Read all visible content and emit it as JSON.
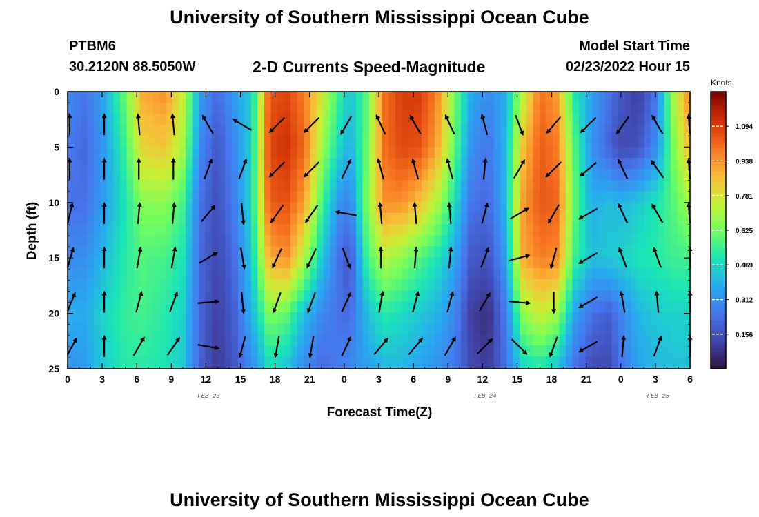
{
  "header": {
    "title": "University of Southern Mississippi Ocean Cube",
    "station": "PTBM6",
    "coords": "30.2120N  88.5050W",
    "subtitle": "2-D Currents Speed-Magnitude",
    "model_start_label": "Model Start Time",
    "model_start_value": "02/23/2022 Hour 15"
  },
  "footer": {
    "title": "University of Southern Mississippi Ocean Cube"
  },
  "colors": {
    "low": "#30123b",
    "high": "#7a0403",
    "vector": "#000000"
  },
  "chart_data": {
    "type": "heatmap",
    "xlabel": "Forecast Time(Z)",
    "ylabel": "Depth (ft)",
    "x_tick_labels": [
      "0",
      "3",
      "6",
      "9",
      "12",
      "15",
      "18",
      "21",
      "0",
      "3",
      "6",
      "9",
      "12",
      "15",
      "18",
      "21",
      "0",
      "3",
      "6"
    ],
    "date_labels": [
      {
        "text": "FEB 23",
        "at_tick": 4
      },
      {
        "text": "FEB 24",
        "at_tick": 12
      },
      {
        "text": "FEB 25",
        "at_tick": 17
      }
    ],
    "ylim": [
      0,
      25
    ],
    "y_ticks": [
      0,
      5,
      10,
      15,
      20,
      25
    ],
    "time_range_hours": [
      0,
      54
    ],
    "colorbar": {
      "title": "Knots",
      "range": [
        0,
        1.25
      ],
      "ticks": [
        0.156,
        0.312,
        0.469,
        0.625,
        0.781,
        0.938,
        1.094
      ]
    },
    "speed_profile": {
      "hours": [
        0,
        1.5,
        3,
        5,
        6.5,
        8.5,
        10,
        11.5,
        13,
        14.5,
        16,
        17.5,
        19,
        20.5,
        22,
        23.5,
        24.5,
        26,
        27.5,
        29,
        30.5,
        32,
        33.5,
        35,
        36.5,
        38,
        39.5,
        41,
        42.5,
        44,
        45.5,
        47,
        48,
        49.5,
        51,
        52.5,
        54
      ],
      "depths": [
        0,
        5,
        10,
        15,
        20,
        25
      ],
      "speed": [
        [
          0.3,
          0.26,
          0.24,
          0.3,
          0.38,
          0.32
        ],
        [
          0.25,
          0.22,
          0.24,
          0.31,
          0.38,
          0.34
        ],
        [
          0.35,
          0.32,
          0.34,
          0.4,
          0.46,
          0.44
        ],
        [
          0.62,
          0.55,
          0.5,
          0.52,
          0.54,
          0.52
        ],
        [
          0.9,
          0.82,
          0.65,
          0.58,
          0.56,
          0.52
        ],
        [
          0.95,
          0.85,
          0.66,
          0.56,
          0.52,
          0.5
        ],
        [
          0.75,
          0.7,
          0.56,
          0.5,
          0.46,
          0.44
        ],
        [
          0.35,
          0.3,
          0.24,
          0.22,
          0.21,
          0.2
        ],
        [
          0.22,
          0.17,
          0.15,
          0.13,
          0.11,
          0.09
        ],
        [
          0.35,
          0.3,
          0.28,
          0.24,
          0.2,
          0.18
        ],
        [
          0.45,
          0.46,
          0.48,
          0.45,
          0.4,
          0.3
        ],
        [
          1.05,
          1.08,
          1.04,
          0.9,
          0.65,
          0.48
        ],
        [
          1.08,
          1.12,
          1.06,
          0.95,
          0.6,
          0.42
        ],
        [
          0.98,
          1.02,
          0.92,
          0.72,
          0.42,
          0.3
        ],
        [
          0.78,
          0.7,
          0.58,
          0.45,
          0.3,
          0.22
        ],
        [
          0.55,
          0.48,
          0.33,
          0.24,
          0.24,
          0.27
        ],
        [
          0.42,
          0.38,
          0.28,
          0.16,
          0.22,
          0.3
        ],
        [
          0.6,
          0.62,
          0.65,
          0.56,
          0.42,
          0.35
        ],
        [
          1.0,
          1.0,
          0.95,
          0.72,
          0.52,
          0.4
        ],
        [
          1.1,
          1.08,
          0.95,
          0.66,
          0.48,
          0.4
        ],
        [
          1.1,
          1.06,
          0.86,
          0.58,
          0.44,
          0.36
        ],
        [
          0.98,
          0.92,
          0.72,
          0.5,
          0.4,
          0.32
        ],
        [
          0.65,
          0.62,
          0.5,
          0.38,
          0.3,
          0.26
        ],
        [
          0.38,
          0.32,
          0.25,
          0.18,
          0.11,
          0.14
        ],
        [
          0.3,
          0.25,
          0.22,
          0.16,
          0.07,
          0.1
        ],
        [
          0.38,
          0.4,
          0.4,
          0.35,
          0.26,
          0.24
        ],
        [
          0.72,
          0.85,
          0.92,
          0.9,
          0.66,
          0.46
        ],
        [
          1.0,
          1.04,
          1.05,
          0.98,
          0.76,
          0.5
        ],
        [
          0.92,
          0.98,
          1.02,
          0.96,
          0.68,
          0.42
        ],
        [
          0.5,
          0.58,
          0.6,
          0.55,
          0.36,
          0.24
        ],
        [
          0.36,
          0.32,
          0.38,
          0.42,
          0.24,
          0.14
        ],
        [
          0.24,
          0.2,
          0.42,
          0.44,
          0.2,
          0.14
        ],
        [
          0.18,
          0.14,
          0.4,
          0.46,
          0.28,
          0.24
        ],
        [
          0.1,
          0.16,
          0.44,
          0.5,
          0.4,
          0.36
        ],
        [
          0.25,
          0.3,
          0.5,
          0.52,
          0.44,
          0.4
        ],
        [
          0.68,
          0.62,
          0.58,
          0.55,
          0.46,
          0.42
        ],
        [
          0.98,
          0.88,
          0.7,
          0.56,
          0.46,
          0.42
        ]
      ]
    },
    "vectors": {
      "hours": [
        0,
        3,
        6,
        9,
        12,
        15,
        18,
        21,
        24,
        27,
        30,
        33,
        36,
        39,
        42,
        45,
        48,
        51,
        54
      ],
      "depths": [
        3,
        7,
        11,
        15,
        19,
        23
      ],
      "direction_deg": [
        [
          0,
          0,
          15,
          20,
          30,
          40
        ],
        [
          0,
          0,
          0,
          0,
          0,
          0
        ],
        [
          355,
          0,
          5,
          10,
          15,
          30
        ],
        [
          355,
          0,
          5,
          10,
          20,
          35
        ],
        [
          330,
          20,
          40,
          60,
          85,
          100
        ],
        [
          300,
          20,
          175,
          170,
          175,
          195
        ],
        [
          225,
          225,
          215,
          205,
          200,
          190
        ],
        [
          225,
          225,
          215,
          205,
          200,
          190
        ],
        [
          210,
          25,
          280,
          160,
          25,
          25
        ],
        [
          335,
          345,
          355,
          0,
          10,
          40
        ],
        [
          330,
          345,
          355,
          5,
          15,
          40
        ],
        [
          335,
          345,
          355,
          5,
          15,
          30
        ],
        [
          345,
          5,
          15,
          20,
          30,
          45
        ],
        [
          160,
          30,
          60,
          75,
          95,
          135
        ],
        [
          220,
          225,
          210,
          195,
          180,
          200
        ],
        [
          225,
          230,
          240,
          240,
          240,
          240
        ],
        [
          215,
          335,
          335,
          340,
          350,
          5
        ],
        [
          330,
          325,
          330,
          340,
          355,
          20
        ],
        [
          340,
          340,
          340,
          0,
          0,
          0
        ]
      ]
    }
  }
}
